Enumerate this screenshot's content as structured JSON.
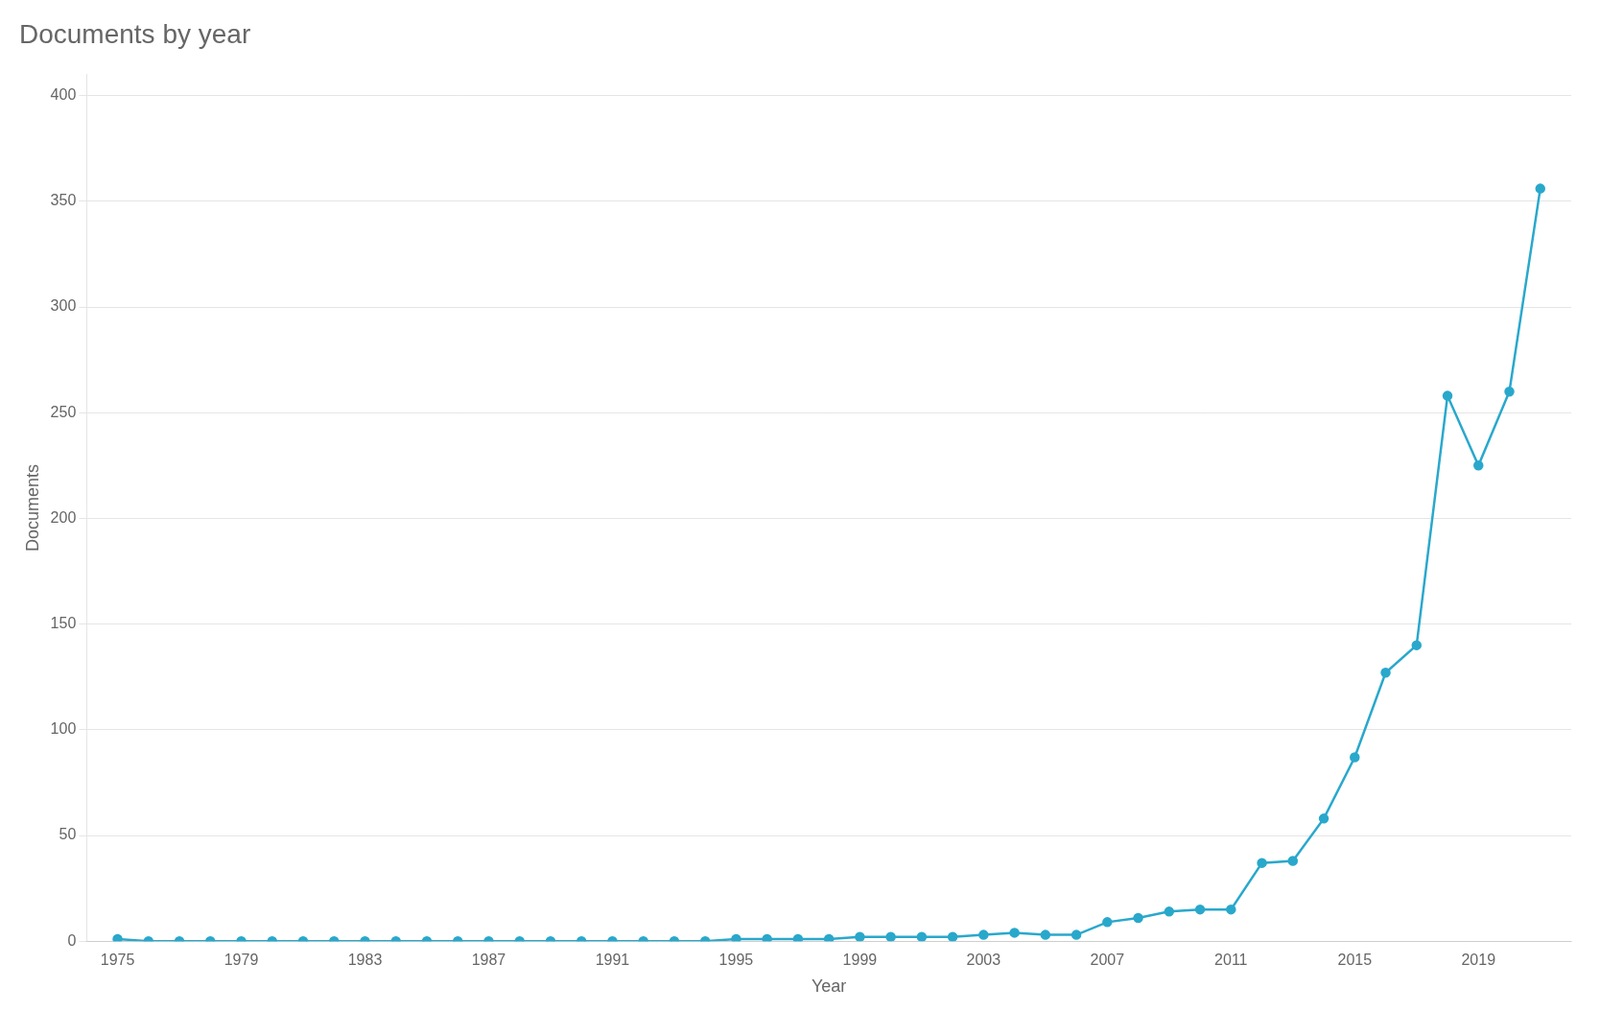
{
  "chart_data": {
    "type": "line",
    "title": "Documents by year",
    "xlabel": "Year",
    "ylabel": "Documents",
    "x": [
      1975,
      1976,
      1977,
      1978,
      1979,
      1980,
      1981,
      1982,
      1983,
      1984,
      1985,
      1986,
      1987,
      1988,
      1989,
      1990,
      1991,
      1992,
      1993,
      1994,
      1995,
      1996,
      1997,
      1998,
      1999,
      2000,
      2001,
      2002,
      2003,
      2004,
      2005,
      2006,
      2007,
      2008,
      2009,
      2010,
      2011,
      2012,
      2013,
      2014,
      2015,
      2016,
      2017,
      2018,
      2019,
      2020,
      2021
    ],
    "values": [
      1,
      0,
      0,
      0,
      0,
      0,
      0,
      0,
      0,
      0,
      0,
      0,
      0,
      0,
      0,
      0,
      0,
      0,
      0,
      0,
      1,
      1,
      1,
      1,
      2,
      2,
      2,
      2,
      3,
      4,
      3,
      3,
      9,
      11,
      14,
      15,
      15,
      37,
      38,
      58,
      87,
      127,
      140,
      258,
      225,
      260,
      356
    ],
    "color": "#29a8cc",
    "marker": "circle",
    "xlim": [
      1974,
      2022
    ],
    "xticks": [
      1975,
      1979,
      1983,
      1987,
      1991,
      1995,
      1999,
      2003,
      2007,
      2011,
      2015,
      2019
    ],
    "ylim": [
      0,
      410
    ],
    "yticks": [
      0,
      50,
      100,
      150,
      200,
      250,
      300,
      350,
      400
    ],
    "grid": "y"
  }
}
